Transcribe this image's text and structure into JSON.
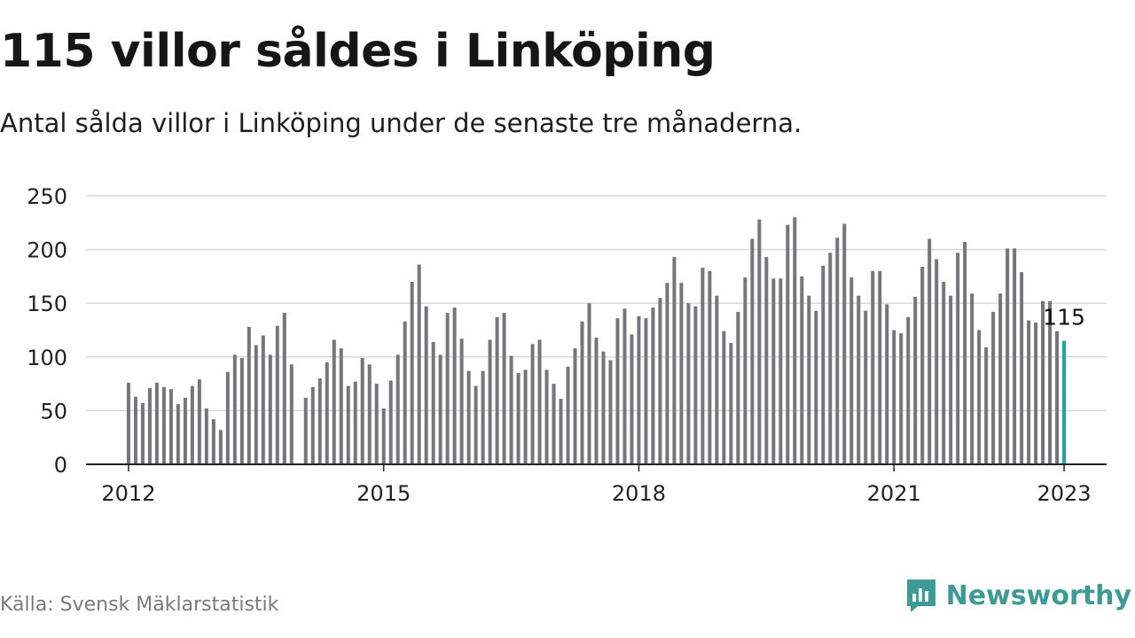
{
  "title": "115 villor såldes i Linköping",
  "subtitle": "Antal sålda villor i Linköping under de senaste tre månaderna.",
  "source": "Källa: Svensk Mäklarstatistik",
  "brand": {
    "name": "Newsworthy",
    "color": "#3d9a95",
    "icon": "newsworthy-logo-icon"
  },
  "colors": {
    "bar": "#75757a",
    "highlight": "#1aa5a0",
    "grid": "#dadada",
    "axis": "#222222",
    "text": "#222222"
  },
  "chart_data": {
    "type": "bar",
    "title": "",
    "xlabel": "",
    "ylabel": "",
    "ylim": [
      0,
      250
    ],
    "yticks": [
      0,
      50,
      100,
      150,
      200,
      250
    ],
    "xlim": [
      "2011-07",
      "2023-07"
    ],
    "xticks": [
      "2012",
      "2015",
      "2018",
      "2021",
      "2023"
    ],
    "grid": true,
    "legend": "none",
    "highlight": {
      "x": "2023-01",
      "value": 115,
      "label": "115"
    },
    "series": [
      {
        "x": [
          "2012-01",
          "2012-02",
          "2012-03",
          "2012-04",
          "2012-05",
          "2012-06",
          "2012-07",
          "2012-08",
          "2012-09",
          "2012-10",
          "2012-11",
          "2012-12",
          "2013-01",
          "2013-02",
          "2013-03",
          "2013-04",
          "2013-05",
          "2013-06",
          "2013-07",
          "2013-08",
          "2013-09",
          "2013-10",
          "2013-11",
          "2013-12",
          "2014-01",
          "2014-02",
          "2014-03",
          "2014-04",
          "2014-05",
          "2014-06",
          "2014-07",
          "2014-08",
          "2014-09",
          "2014-10",
          "2014-11",
          "2014-12",
          "2015-01",
          "2015-02",
          "2015-03",
          "2015-04",
          "2015-05",
          "2015-06",
          "2015-07",
          "2015-08",
          "2015-09",
          "2015-10",
          "2015-11",
          "2015-12",
          "2016-01",
          "2016-02",
          "2016-03",
          "2016-04",
          "2016-05",
          "2016-06",
          "2016-07",
          "2016-08",
          "2016-09",
          "2016-10",
          "2016-11",
          "2016-12",
          "2017-01",
          "2017-02",
          "2017-03",
          "2017-04",
          "2017-05",
          "2017-06",
          "2017-07",
          "2017-08",
          "2017-09",
          "2017-10",
          "2017-11",
          "2017-12",
          "2018-01",
          "2018-02",
          "2018-03",
          "2018-04",
          "2018-05",
          "2018-06",
          "2018-07",
          "2018-08",
          "2018-09",
          "2018-10",
          "2018-11",
          "2018-12",
          "2019-01",
          "2019-02",
          "2019-03",
          "2019-04",
          "2019-05",
          "2019-06",
          "2019-07",
          "2019-08",
          "2019-09",
          "2019-10",
          "2019-11",
          "2019-12",
          "2020-01",
          "2020-02",
          "2020-03",
          "2020-04",
          "2020-05",
          "2020-06",
          "2020-07",
          "2020-08",
          "2020-09",
          "2020-10",
          "2020-11",
          "2020-12",
          "2021-01",
          "2021-02",
          "2021-03",
          "2021-04",
          "2021-05",
          "2021-06",
          "2021-07",
          "2021-08",
          "2021-09",
          "2021-10",
          "2021-11",
          "2021-12",
          "2022-01",
          "2022-02",
          "2022-03",
          "2022-04",
          "2022-05",
          "2022-06",
          "2022-07",
          "2022-08",
          "2022-09",
          "2022-10",
          "2022-11",
          "2022-12",
          "2023-01"
        ],
        "values": [
          76,
          63,
          57,
          71,
          76,
          72,
          70,
          56,
          62,
          73,
          79,
          52,
          42,
          32,
          86,
          102,
          99,
          128,
          111,
          120,
          102,
          129,
          141,
          93,
          null,
          62,
          72,
          80,
          95,
          116,
          108,
          73,
          77,
          99,
          93,
          75,
          52,
          78,
          102,
          133,
          170,
          186,
          147,
          114,
          102,
          141,
          146,
          117,
          87,
          73,
          87,
          116,
          137,
          141,
          101,
          85,
          88,
          112,
          116,
          88,
          75,
          61,
          91,
          108,
          133,
          150,
          118,
          105,
          97,
          136,
          145,
          121,
          138,
          136,
          146,
          155,
          169,
          193,
          169,
          150,
          147,
          183,
          180,
          157,
          124,
          113,
          142,
          174,
          210,
          228,
          193,
          173,
          173,
          223,
          230,
          175,
          157,
          143,
          185,
          197,
          211,
          224,
          174,
          157,
          143,
          180,
          180,
          149,
          125,
          122,
          137,
          156,
          184,
          210,
          191,
          170,
          157,
          197,
          207,
          159,
          125,
          109,
          142,
          159,
          201,
          201,
          179,
          134,
          132,
          152,
          152,
          124,
          115
        ]
      }
    ]
  }
}
